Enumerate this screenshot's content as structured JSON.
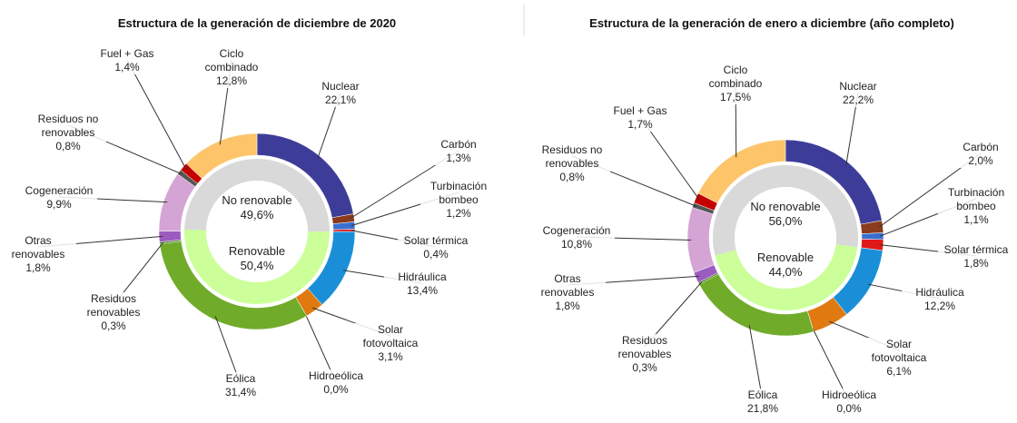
{
  "chart_data": [
    {
      "type": "donut",
      "title": "Estructura de la generación de diciembre de 2020",
      "categories": [
        "Nuclear",
        "Carbón",
        "Turbinación bombeo",
        "Solar térmica",
        "Hidráulica",
        "Solar fotovoltaica",
        "Hidroeólica",
        "Eólica",
        "Residuos renovables",
        "Otras renovables",
        "Cogeneración",
        "Residuos no renovables",
        "Fuel + Gas",
        "Ciclo combinado"
      ],
      "values": [
        22.1,
        1.3,
        1.2,
        0.4,
        13.4,
        3.1,
        0.0,
        31.4,
        0.3,
        1.8,
        9.9,
        0.8,
        1.4,
        12.8
      ],
      "value_labels": [
        "22,1%",
        "1,3%",
        "1,2%",
        "0,4%",
        "13,4%",
        "3,1%",
        "0,0%",
        "31,4%",
        "0,3%",
        "1,8%",
        "9,9%",
        "0,8%",
        "1,4%",
        "12,8%"
      ],
      "colors": [
        "#3d3d99",
        "#8a3b1c",
        "#3a6fd0",
        "#e01818",
        "#1a8fd8",
        "#e07a10",
        "#555555",
        "#70ab2a",
        "#4f7f2a",
        "#9b5bc0",
        "#d4a4d4",
        "#555555",
        "#c40000",
        "#fdc46a"
      ],
      "inner": {
        "categories": [
          "No renovable",
          "Renovable"
        ],
        "values": [
          49.6,
          50.4
        ],
        "value_labels": [
          "49,6%",
          "50,4%"
        ],
        "colors": [
          "#d9d9d9",
          "#ccff99"
        ]
      }
    },
    {
      "type": "donut",
      "title": "Estructura de la generación de enero a diciembre (año completo)",
      "categories": [
        "Nuclear",
        "Carbón",
        "Turbinación bombeo",
        "Solar térmica",
        "Hidráulica",
        "Solar fotovoltaica",
        "Hidroeólica",
        "Eólica",
        "Residuos renovables",
        "Otras renovables",
        "Cogeneración",
        "Residuos no renovables",
        "Fuel + Gas",
        "Ciclo combinado"
      ],
      "values": [
        22.2,
        2.0,
        1.1,
        1.8,
        12.2,
        6.1,
        0.0,
        21.8,
        0.3,
        1.8,
        10.8,
        0.8,
        1.7,
        17.5
      ],
      "value_labels": [
        "22,2%",
        "2,0%",
        "1,1%",
        "1,8%",
        "12,2%",
        "6,1%",
        "0,0%",
        "21,8%",
        "0,3%",
        "1,8%",
        "10,8%",
        "0,8%",
        "1,7%",
        "17,5%"
      ],
      "colors": [
        "#3d3d99",
        "#8a3b1c",
        "#3a6fd0",
        "#e01818",
        "#1a8fd8",
        "#e07a10",
        "#555555",
        "#70ab2a",
        "#4f7f2a",
        "#9b5bc0",
        "#d4a4d4",
        "#555555",
        "#c40000",
        "#fdc46a"
      ],
      "inner": {
        "categories": [
          "No renovable",
          "Renovable"
        ],
        "values": [
          56.0,
          44.0
        ],
        "value_labels": [
          "56,0%",
          "44,0%"
        ],
        "colors": [
          "#d9d9d9",
          "#ccff99"
        ]
      }
    }
  ]
}
